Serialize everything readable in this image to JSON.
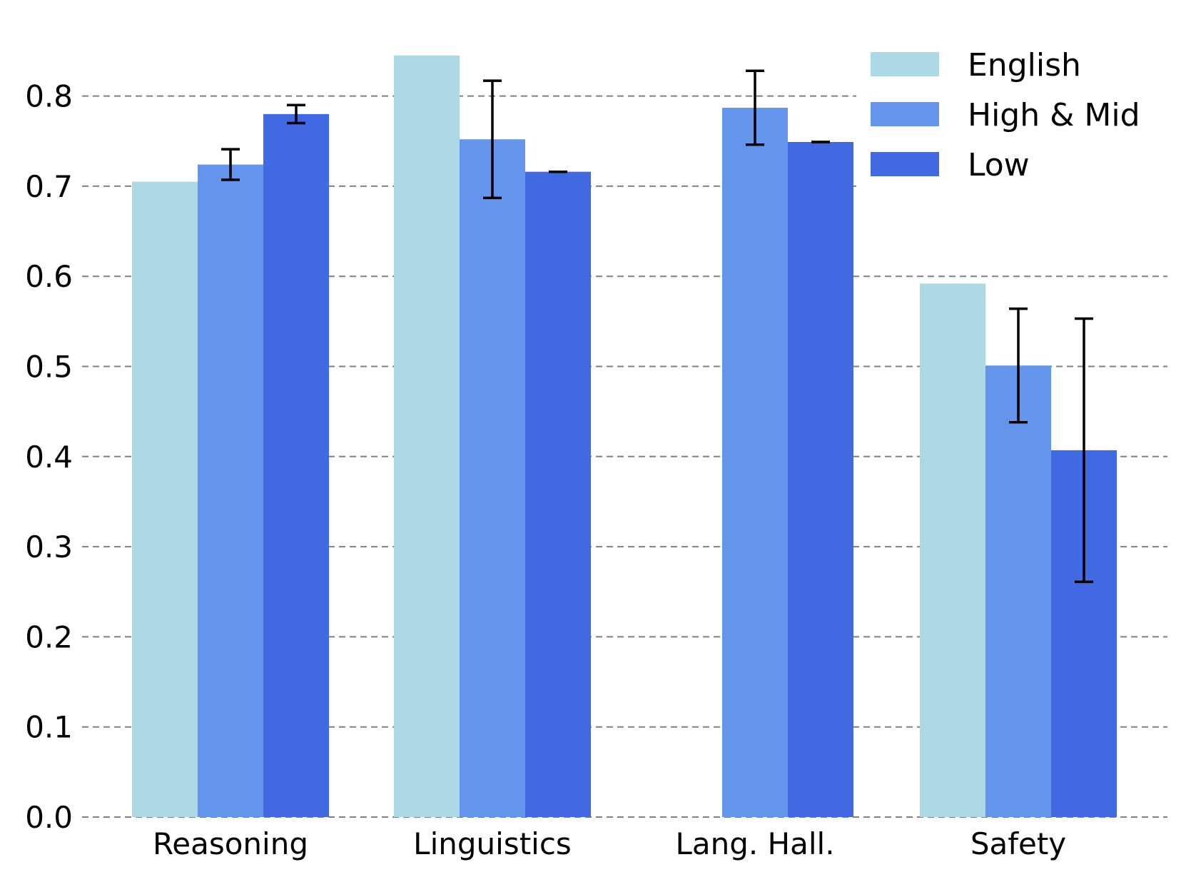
{
  "chart_data": {
    "type": "bar",
    "title": "",
    "xlabel": "",
    "ylabel": "",
    "ylim": [
      0,
      0.85
    ],
    "yticks": [
      "0.0",
      "0.1",
      "0.2",
      "0.3",
      "0.4",
      "0.5",
      "0.6",
      "0.7",
      "0.8"
    ],
    "grid": true,
    "legend_position": "top-right",
    "categories": [
      "Reasoning",
      "Linguistics",
      "Lang. Hall.",
      "Safety"
    ],
    "series": [
      {
        "name": "English",
        "color": "#add8e6",
        "values": [
          0.705,
          0.845,
          null,
          0.592
        ],
        "errors": [
          null,
          null,
          null,
          null
        ]
      },
      {
        "name": "High & Mid",
        "color": "#6495ed",
        "values": [
          0.724,
          0.752,
          0.787,
          0.501
        ],
        "errors": [
          0.017,
          0.065,
          0.041,
          0.063
        ]
      },
      {
        "name": "Low",
        "color": "#4169e1",
        "values": [
          0.78,
          0.716,
          0.749,
          0.407
        ],
        "errors": [
          0.01,
          0.0,
          0.0,
          0.146
        ]
      }
    ]
  }
}
